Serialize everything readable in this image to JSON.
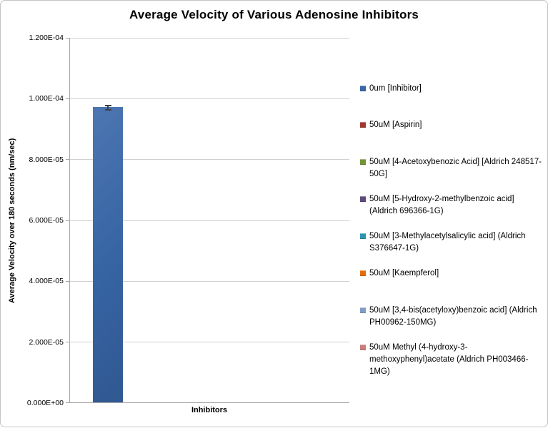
{
  "chart_data": {
    "type": "bar",
    "title": "Average Velocity of Various Adenosine Inhibitors",
    "xlabel": "Inhibitors",
    "ylabel": "Average Velocity over 180 seconds (nm/sec)",
    "ylim": [
      0,
      0.00012
    ],
    "ytick_labels": [
      "1.200E-04",
      "1.000E-04",
      "8.000E-05",
      "6.000E-05",
      "4.000E-05",
      "2.000E-05",
      "0.000E+00"
    ],
    "grid": true,
    "legend_position": "right",
    "series": [
      {
        "name": "0um [Inhibitor]",
        "lines": [
          "0um [Inhibitor]"
        ],
        "color": "#3867a9",
        "value": 9.7e-05,
        "error": 1e-06
      },
      {
        "name": "50uM [Aspirin]",
        "lines": [
          "50uM [Aspirin]"
        ],
        "color": "#a13931",
        "value": null
      },
      {
        "name": "50uM [4-Acetoxybenozic Acid] [Aldrich 248517-50G]",
        "lines": [
          "50uM [4-Acetoxybenozic Acid] [Aldrich 248517-",
          "50G]"
        ],
        "color": "#739334",
        "value": null
      },
      {
        "name": "50uM [5-Hydroxy-2-methylbenzoic acid] (Aldrich 696366-1G)",
        "lines": [
          "50uM [5-Hydroxy-2-methylbenzoic acid]",
          "(Aldrich 696366-1G)"
        ],
        "color": "#5f4a7e",
        "value": null
      },
      {
        "name": "50uM [3-Methylacetylsalicylic acid] (Aldrich S376647-1G)",
        "lines": [
          "50uM [3-Methylacetylsalicylic acid] (Aldrich",
          "S376647-1G)"
        ],
        "color": "#2e96ac",
        "value": null
      },
      {
        "name": "50uM [Kaempferol]",
        "lines": [
          "50uM [Kaempferol]"
        ],
        "color": "#e36d0c",
        "value": null
      },
      {
        "name": "50uM [3,4-bis(acetyloxy)benzoic acid] (Aldrich PH00962-150MG)",
        "lines": [
          "50uM [3,4-bis(acetyloxy)benzoic acid] (Aldrich",
          "PH00962-150MG)"
        ],
        "color": "#7f9dc9",
        "value": null
      },
      {
        "name": "50uM Methyl (4-hydroxy-3-methoxyphenyl)acetate (Aldrich PH003466-1MG)",
        "lines": [
          "50uM Methyl (4-hydroxy-3-",
          "methoxyphenyl)acetate (Aldrich PH003466-",
          "1MG)"
        ],
        "color": "#cb7d79",
        "value": null
      }
    ]
  }
}
